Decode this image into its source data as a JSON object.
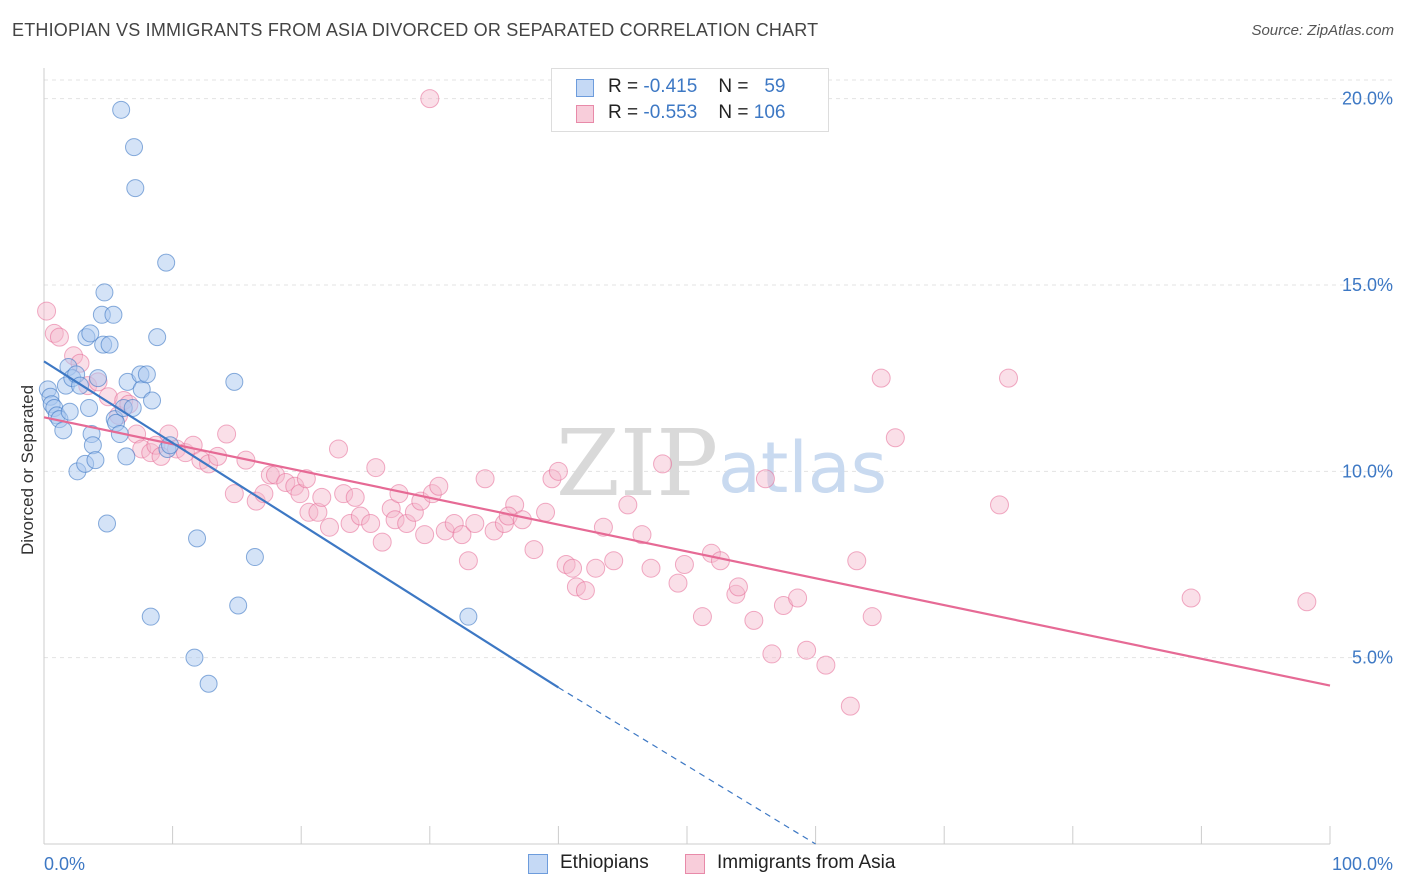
{
  "header": {
    "title": "ETHIOPIAN VS IMMIGRANTS FROM ASIA DIVORCED OR SEPARATED CORRELATION CHART",
    "source": "Source: ZipAtlas.com"
  },
  "legend": {
    "rows": [
      {
        "r_label": "R =",
        "r_value": "-0.415",
        "n_label": "N =",
        "n_value": "59"
      },
      {
        "r_label": "R =",
        "r_value": "-0.553",
        "n_label": "N =",
        "n_value": "106"
      }
    ]
  },
  "watermark": {
    "zip": "ZIP",
    "atlas": "atlas"
  },
  "colors": {
    "blue": "#3d78c4",
    "blue_fill": "#a9c7ef",
    "pink": "#e66a95",
    "pink_fill": "#f5b8cb"
  },
  "chart_data": {
    "type": "scatter",
    "title": "ETHIOPIAN VS IMMIGRANTS FROM ASIA DIVORCED OR SEPARATED CORRELATION CHART",
    "xlabel": "",
    "ylabel": "Divorced or Separated",
    "xlim": [
      0,
      100
    ],
    "ylim": [
      0,
      20.5
    ],
    "x_tick_labels": [
      "0.0%",
      "100.0%"
    ],
    "y_ticks": [
      5,
      10,
      15,
      20
    ],
    "y_tick_labels": [
      "5.0%",
      "10.0%",
      "15.0%",
      "20.0%"
    ],
    "series": [
      {
        "name": "Ethiopians",
        "color": "#3d78c4",
        "points": [
          [
            0.3,
            12.2
          ],
          [
            0.5,
            12.0
          ],
          [
            0.6,
            11.8
          ],
          [
            0.8,
            11.7
          ],
          [
            1.0,
            11.5
          ],
          [
            1.2,
            11.4
          ],
          [
            1.5,
            11.1
          ],
          [
            1.7,
            12.3
          ],
          [
            1.9,
            12.8
          ],
          [
            2.0,
            11.6
          ],
          [
            2.2,
            12.5
          ],
          [
            2.5,
            12.6
          ],
          [
            2.6,
            10.0
          ],
          [
            2.8,
            12.3
          ],
          [
            3.2,
            10.2
          ],
          [
            3.3,
            13.6
          ],
          [
            3.5,
            11.7
          ],
          [
            3.6,
            13.7
          ],
          [
            3.7,
            11.0
          ],
          [
            3.8,
            10.7
          ],
          [
            4.0,
            10.3
          ],
          [
            4.2,
            12.5
          ],
          [
            4.5,
            14.2
          ],
          [
            4.6,
            13.4
          ],
          [
            4.7,
            14.8
          ],
          [
            4.9,
            8.6
          ],
          [
            5.1,
            13.4
          ],
          [
            5.4,
            14.2
          ],
          [
            5.5,
            11.4
          ],
          [
            5.6,
            11.3
          ],
          [
            5.9,
            11.0
          ],
          [
            6.0,
            19.7
          ],
          [
            6.2,
            11.7
          ],
          [
            6.4,
            10.4
          ],
          [
            6.5,
            12.4
          ],
          [
            6.9,
            11.7
          ],
          [
            7.0,
            18.7
          ],
          [
            7.1,
            17.6
          ],
          [
            7.5,
            12.6
          ],
          [
            7.6,
            12.2
          ],
          [
            8.0,
            12.6
          ],
          [
            8.3,
            6.1
          ],
          [
            8.4,
            11.9
          ],
          [
            8.8,
            13.6
          ],
          [
            9.5,
            15.6
          ],
          [
            9.6,
            10.6
          ],
          [
            9.8,
            10.7
          ],
          [
            11.7,
            5.0
          ],
          [
            11.9,
            8.2
          ],
          [
            12.8,
            4.3
          ],
          [
            14.8,
            12.4
          ],
          [
            15.1,
            6.4
          ],
          [
            16.4,
            7.7
          ],
          [
            33.0,
            6.1
          ]
        ],
        "trend": {
          "x": [
            0,
            40
          ],
          "y": [
            12.95,
            4.2
          ]
        },
        "trend_dashed": {
          "x": [
            40,
            60
          ],
          "y": [
            4.2,
            0.0
          ]
        }
      },
      {
        "name": "Immigrants from Asia",
        "color": "#e66a95",
        "points": [
          [
            0.2,
            14.3
          ],
          [
            0.8,
            13.7
          ],
          [
            1.2,
            13.6
          ],
          [
            2.3,
            13.1
          ],
          [
            2.8,
            12.9
          ],
          [
            3.4,
            12.3
          ],
          [
            4.2,
            12.4
          ],
          [
            5.0,
            12.0
          ],
          [
            5.8,
            11.5
          ],
          [
            6.2,
            11.9
          ],
          [
            6.6,
            11.8
          ],
          [
            7.2,
            11.0
          ],
          [
            7.6,
            10.6
          ],
          [
            8.3,
            10.5
          ],
          [
            8.7,
            10.7
          ],
          [
            9.1,
            10.4
          ],
          [
            9.7,
            11.0
          ],
          [
            10.3,
            10.6
          ],
          [
            11.0,
            10.5
          ],
          [
            11.6,
            10.7
          ],
          [
            12.2,
            10.3
          ],
          [
            12.8,
            10.2
          ],
          [
            13.5,
            10.4
          ],
          [
            14.2,
            11.0
          ],
          [
            14.8,
            9.4
          ],
          [
            15.7,
            10.3
          ],
          [
            16.5,
            9.2
          ],
          [
            17.1,
            9.4
          ],
          [
            17.6,
            9.9
          ],
          [
            18.0,
            9.9
          ],
          [
            18.8,
            9.7
          ],
          [
            19.5,
            9.6
          ],
          [
            19.9,
            9.4
          ],
          [
            20.4,
            9.8
          ],
          [
            20.6,
            8.9
          ],
          [
            21.3,
            8.9
          ],
          [
            21.6,
            9.3
          ],
          [
            22.2,
            8.5
          ],
          [
            22.9,
            10.6
          ],
          [
            23.3,
            9.4
          ],
          [
            23.8,
            8.6
          ],
          [
            24.2,
            9.3
          ],
          [
            24.6,
            8.8
          ],
          [
            25.4,
            8.6
          ],
          [
            25.8,
            10.1
          ],
          [
            26.3,
            8.1
          ],
          [
            27.0,
            9.0
          ],
          [
            27.3,
            8.7
          ],
          [
            27.6,
            9.4
          ],
          [
            28.2,
            8.6
          ],
          [
            28.8,
            8.9
          ],
          [
            29.3,
            9.2
          ],
          [
            29.6,
            8.3
          ],
          [
            30.2,
            9.4
          ],
          [
            30.7,
            9.6
          ],
          [
            31.2,
            8.4
          ],
          [
            31.9,
            8.6
          ],
          [
            32.5,
            8.3
          ],
          [
            33.0,
            7.6
          ],
          [
            33.5,
            8.6
          ],
          [
            34.3,
            9.8
          ],
          [
            35.0,
            8.4
          ],
          [
            35.8,
            8.6
          ],
          [
            36.6,
            9.1
          ],
          [
            36.1,
            8.8
          ],
          [
            37.2,
            8.7
          ],
          [
            38.1,
            7.9
          ],
          [
            39.0,
            8.9
          ],
          [
            39.5,
            9.8
          ],
          [
            40.0,
            10.0
          ],
          [
            40.6,
            7.5
          ],
          [
            41.1,
            7.4
          ],
          [
            41.4,
            6.9
          ],
          [
            42.1,
            6.8
          ],
          [
            42.9,
            7.4
          ],
          [
            43.5,
            8.5
          ],
          [
            44.3,
            7.6
          ],
          [
            45.4,
            9.1
          ],
          [
            46.5,
            8.3
          ],
          [
            47.2,
            7.4
          ],
          [
            48.1,
            10.2
          ],
          [
            49.3,
            7.0
          ],
          [
            49.8,
            7.5
          ],
          [
            51.2,
            6.1
          ],
          [
            51.9,
            7.8
          ],
          [
            52.6,
            7.6
          ],
          [
            53.8,
            6.7
          ],
          [
            54.0,
            6.9
          ],
          [
            55.2,
            6.0
          ],
          [
            56.1,
            9.8
          ],
          [
            56.6,
            5.1
          ],
          [
            57.5,
            6.4
          ],
          [
            58.6,
            6.6
          ],
          [
            59.3,
            5.2
          ],
          [
            60.8,
            4.8
          ],
          [
            62.7,
            3.7
          ],
          [
            63.2,
            7.6
          ],
          [
            64.4,
            6.1
          ],
          [
            65.1,
            12.5
          ],
          [
            66.2,
            10.9
          ],
          [
            74.3,
            9.1
          ],
          [
            75.0,
            12.5
          ],
          [
            89.2,
            6.6
          ],
          [
            98.2,
            6.5
          ],
          [
            30.0,
            20.0
          ]
        ],
        "trend": {
          "x": [
            0,
            100
          ],
          "y": [
            11.45,
            4.25
          ]
        }
      }
    ]
  },
  "bottom_legend": {
    "items": [
      {
        "label": "Ethiopians"
      },
      {
        "label": "Immigrants from Asia"
      }
    ]
  }
}
